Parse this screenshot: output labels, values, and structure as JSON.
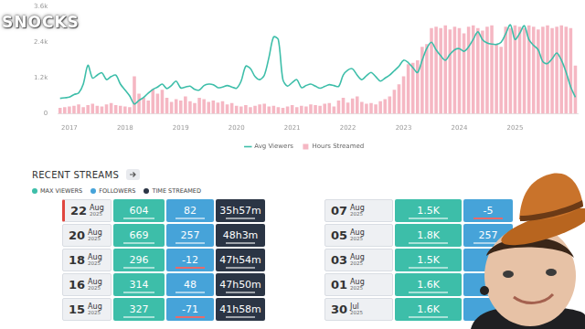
{
  "chart_data": {
    "type": "line",
    "legend": "bottom",
    "grid": false,
    "categories": [
      null,
      null,
      "2017",
      null,
      null,
      null,
      null,
      null,
      null,
      null,
      null,
      null,
      null,
      null,
      "2018",
      null,
      null,
      null,
      null,
      null,
      null,
      null,
      null,
      null,
      null,
      null,
      "2019",
      null,
      null,
      null,
      null,
      null,
      null,
      null,
      null,
      null,
      null,
      null,
      "2020",
      null,
      null,
      null,
      null,
      null,
      null,
      null,
      null,
      null,
      null,
      null,
      "2021",
      null,
      null,
      null,
      null,
      null,
      null,
      null,
      null,
      null,
      null,
      null,
      "2022",
      null,
      null,
      null,
      null,
      null,
      null,
      null,
      null,
      null,
      null,
      null,
      "2023",
      null,
      null,
      null,
      null,
      null,
      null,
      null,
      null,
      null,
      null,
      null,
      "2024",
      null,
      null,
      null,
      null,
      null,
      null,
      null,
      null,
      null,
      null,
      null,
      "2025",
      null,
      null,
      null,
      null,
      null,
      null,
      null,
      null,
      null,
      null,
      null,
      null,
      null
    ],
    "series": [
      {
        "name": "Avg Viewers",
        "type": "line",
        "color": "#3dbea9",
        "values": [
          520,
          540,
          560,
          650,
          700,
          1000,
          1630,
          1200,
          1300,
          1380,
          1150,
          1250,
          1300,
          1000,
          800,
          600,
          330,
          450,
          550,
          700,
          820,
          900,
          1000,
          850,
          950,
          1100,
          870,
          900,
          930,
          820,
          800,
          950,
          1000,
          980,
          880,
          900,
          950,
          900,
          860,
          1100,
          1600,
          1520,
          1250,
          1150,
          1300,
          1900,
          2580,
          2500,
          1150,
          930,
          1050,
          1150,
          880,
          950,
          1000,
          930,
          860,
          920,
          980,
          950,
          920,
          1300,
          1470,
          1510,
          1300,
          1150,
          1280,
          1390,
          1250,
          1100,
          1200,
          1300,
          1450,
          1600,
          1800,
          1720,
          1550,
          1390,
          1800,
          2200,
          2400,
          2150,
          1950,
          1800,
          2000,
          2150,
          2190,
          2100,
          2250,
          2500,
          2750,
          2490,
          2380,
          2340,
          2330,
          2400,
          2690,
          2990,
          2500,
          2700,
          2960,
          2490,
          2300,
          2150,
          1750,
          1690,
          1850,
          2040,
          1800,
          1400,
          900,
          560
        ]
      },
      {
        "name": "Hours Streamed",
        "type": "bar",
        "axis": "y2",
        "color": "#f5b7c3",
        "values": [
          45,
          50,
          55,
          60,
          70,
          50,
          65,
          75,
          60,
          55,
          70,
          80,
          65,
          60,
          55,
          50,
          280,
          150,
          120,
          100,
          185,
          150,
          180,
          120,
          90,
          110,
          100,
          130,
          95,
          80,
          120,
          110,
          90,
          100,
          85,
          95,
          70,
          80,
          60,
          55,
          65,
          50,
          60,
          70,
          75,
          55,
          60,
          50,
          45,
          55,
          65,
          50,
          60,
          55,
          70,
          65,
          60,
          75,
          80,
          55,
          100,
          120,
          85,
          115,
          130,
          90,
          75,
          80,
          70,
          95,
          110,
          130,
          180,
          220,
          280,
          370,
          380,
          400,
          500,
          520,
          640,
          650,
          640,
          660,
          630,
          650,
          640,
          600,
          650,
          660,
          640,
          620,
          650,
          660,
          520,
          500,
          650,
          640,
          660,
          650,
          640,
          660,
          650,
          630,
          650,
          660,
          640,
          650,
          660,
          650,
          640,
          360
        ]
      }
    ],
    "ylim": [
      0,
      3600
    ],
    "yticks": [
      0,
      {
        "value": 1200,
        "label": "1.2k"
      },
      {
        "value": 2400,
        "label": "2.4k"
      },
      {
        "value": 3600,
        "label": "3.6k"
      }
    ],
    "y2lim": [
      0,
      800
    ]
  },
  "watermark": "SNOCKS",
  "recent_streams": {
    "title": "RECENT STREAMS",
    "key": [
      "MAX VIEWERS",
      "FOLLOWERS",
      "TIME STREAMED"
    ],
    "columns": [
      [
        {
          "day": "22",
          "month": "Aug",
          "year": "2025",
          "max_viewers": "604",
          "followers": "82",
          "time_streamed": "35h57m"
        },
        {
          "day": "20",
          "month": "Aug",
          "year": "2025",
          "max_viewers": "669",
          "followers": "257",
          "time_streamed": "48h3m"
        },
        {
          "day": "18",
          "month": "Aug",
          "year": "2025",
          "max_viewers": "296",
          "followers": "-12",
          "time_streamed": "47h54m"
        },
        {
          "day": "16",
          "month": "Aug",
          "year": "2025",
          "max_viewers": "314",
          "followers": "48",
          "time_streamed": "47h50m"
        },
        {
          "day": "15",
          "month": "Aug",
          "year": "2025",
          "max_viewers": "327",
          "followers": "-71",
          "time_streamed": "41h58m"
        }
      ],
      [
        {
          "day": "07",
          "month": "Aug",
          "year": "2025",
          "max_viewers": "1.5K",
          "followers": "-5"
        },
        {
          "day": "05",
          "month": "Aug",
          "year": "2025",
          "max_viewers": "1.8K",
          "followers": "257"
        },
        {
          "day": "03",
          "month": "Aug",
          "year": "2025",
          "max_viewers": "1.5K"
        },
        {
          "day": "01",
          "month": "Aug",
          "year": "2025",
          "max_viewers": "1.6K"
        },
        {
          "day": "30",
          "month": "Jul",
          "year": "2025",
          "max_viewers": "1.6K"
        }
      ]
    ]
  }
}
